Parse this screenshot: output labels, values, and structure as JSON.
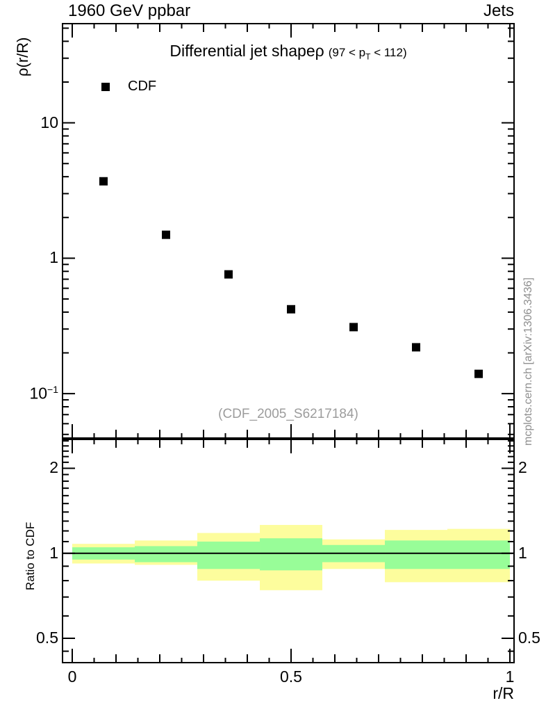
{
  "header": {
    "left": "1960 GeV ppbar",
    "right": "Jets"
  },
  "panel_title": {
    "main": "Differential jet shapeρ",
    "paren_prefix": "(97 < p",
    "paren_sub": "T",
    "paren_suffix": " < 112)"
  },
  "legend": {
    "items": [
      {
        "label": "CDF",
        "marker": "filled-square",
        "color": "#000000"
      }
    ]
  },
  "watermark": "(CDF_2005_S6217184)",
  "side_note": "mcplots.cern.ch [arXiv:1306.3436]",
  "chart_data": [
    {
      "type": "scatter",
      "panel": "main",
      "title": "Differential jet shapeρ (97 < pT < 112)",
      "xlabel": "r/R",
      "ylabel": "ρ(r/R)",
      "xscale": "linear",
      "yscale": "log",
      "xlim": [
        -0.0222,
        1.0095
      ],
      "ylim": [
        0.047,
        54
      ],
      "grid": false,
      "xticks": {
        "major": [
          0,
          0.5,
          1
        ],
        "labels": [
          "0",
          "0.5",
          "1"
        ],
        "medium_step": 0.1,
        "minor_step": 0.05
      },
      "yticks": {
        "major": [
          10,
          1,
          0.1
        ],
        "labels": [
          {
            "text": "10"
          },
          {
            "text": "1"
          },
          {
            "text": "10",
            "sup": "−1"
          }
        ]
      },
      "series": [
        {
          "name": "CDF",
          "marker": "filled-square",
          "color": "#000000",
          "x": [
            0.0714,
            0.2143,
            0.3571,
            0.5,
            0.6429,
            0.7857,
            0.9286
          ],
          "y": [
            3.7,
            1.49,
            0.76,
            0.42,
            0.31,
            0.22,
            0.14
          ]
        }
      ]
    },
    {
      "type": "ratio-band",
      "panel": "ratio",
      "ylabel": "Ratio to CDF",
      "yscale": "log",
      "ylim": [
        0.41,
        2.53
      ],
      "baseline": 1,
      "yticks": {
        "major": [
          2,
          1,
          0.5
        ],
        "labels": [
          "2",
          "1",
          "0.5"
        ],
        "minor": [
          0.45,
          0.6,
          0.7,
          0.8,
          0.9,
          1.1,
          1.2,
          1.3,
          1.4,
          1.5,
          1.6,
          1.7,
          1.8,
          1.9,
          2.1,
          2.2,
          2.3,
          2.4,
          2.5
        ]
      },
      "bin_edges": [
        0,
        0.1429,
        0.2857,
        0.4286,
        0.5714,
        0.7143,
        0.8571,
        1.0
      ],
      "bands": [
        {
          "name": "outer-uncertainty",
          "color": "#fdfd9d",
          "hi": [
            1.08,
            1.11,
            1.18,
            1.26,
            1.12,
            1.21,
            1.22
          ],
          "lo": [
            0.92,
            0.91,
            0.8,
            0.74,
            0.88,
            0.79,
            0.79
          ]
        },
        {
          "name": "inner-uncertainty",
          "color": "#98fd98",
          "hi": [
            1.05,
            1.06,
            1.1,
            1.13,
            1.07,
            1.11,
            1.11
          ],
          "lo": [
            0.95,
            0.93,
            0.88,
            0.87,
            0.93,
            0.88,
            0.88
          ]
        }
      ]
    }
  ]
}
